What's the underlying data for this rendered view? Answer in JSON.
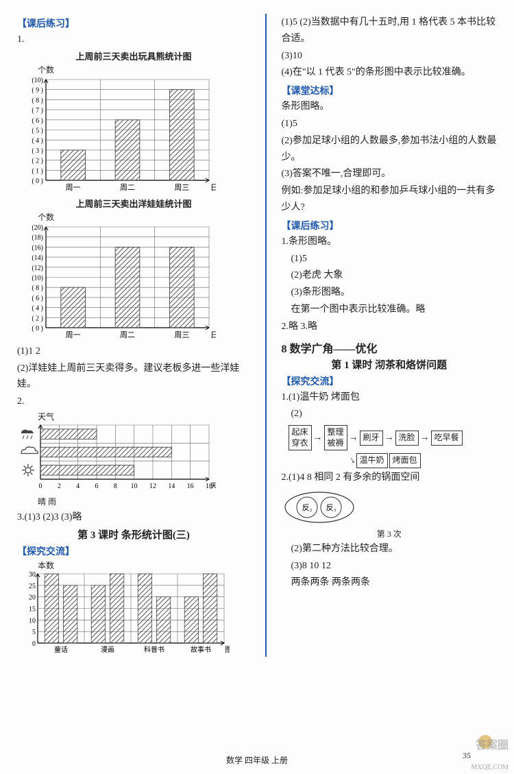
{
  "left": {
    "sect_practice": "【课后练习】",
    "q1": "1.",
    "chart1": {
      "title": "上周前三天卖出玩具熊统计图",
      "ylabel": "个数",
      "xlabel": "日期",
      "ymax": 10,
      "ystep": 1,
      "yticks": [
        "(10)",
        "( 9 )",
        "( 8 )",
        "( 7 )",
        "( 6 )",
        "( 5 )",
        "( 4 )",
        "( 3 )",
        "( 2 )",
        "( 1 )",
        "( 0 )"
      ],
      "categories": [
        "周一",
        "周二",
        "周三"
      ],
      "values": [
        3,
        6,
        9
      ],
      "bar_width_ratio": 0.45,
      "bar_color": "#666",
      "grid_color": "#666",
      "bg": "#fff"
    },
    "chart2": {
      "title": "上周前三天卖出洋娃娃统计图",
      "ylabel": "个数",
      "xlabel": "日期",
      "ymax": 20,
      "ystep": 2,
      "yticks": [
        "(20)",
        "(18)",
        "(16)",
        "(14)",
        "(12)",
        "(10)",
        "( 8 )",
        "( 6 )",
        "( 4 )",
        "( 2 )",
        "( 0 )"
      ],
      "categories": [
        "周一",
        "周二",
        "周三"
      ],
      "values": [
        8,
        16,
        16
      ],
      "bar_width_ratio": 0.45,
      "bar_color": "#666",
      "grid_color": "#666",
      "bg": "#fff"
    },
    "a1_1": "(1)1  2",
    "a1_2": "(2)洋娃娃上周前三天卖得多。建议老板多进一些洋娃娃。",
    "q2": "2.",
    "chart3": {
      "ylabel": "天气",
      "xlabel": "天数",
      "xmax": 18,
      "xstep": 2,
      "xticks": [
        "0",
        "2",
        "4",
        "6",
        "8",
        "10",
        "12",
        "14",
        "16",
        "18"
      ],
      "rows": [
        {
          "icon": "rain",
          "value": 6
        },
        {
          "icon": "cloud",
          "value": 14
        },
        {
          "icon": "sun",
          "value": 10
        }
      ],
      "bar_color": "#666",
      "grid_color": "#666",
      "legend": "晴  雨"
    },
    "q3": "3.(1)3  (2)3  (3)略",
    "lesson3": "第 3 课时  条形统计图(三)",
    "sect_explore": "【探究交流】",
    "chart4": {
      "ylabel": "本数",
      "xlabel": "图书",
      "ymax": 30,
      "ystep": 5,
      "yticks": [
        "30",
        "25",
        "20",
        "15",
        "10",
        "5",
        "0"
      ],
      "categories": [
        "童话",
        "漫画",
        "科普书",
        "故事书"
      ],
      "left_values": [
        30,
        25,
        30,
        20
      ],
      "right_values": [
        25,
        30,
        20,
        30
      ],
      "bar_color": "#666",
      "grid_color": "#666"
    }
  },
  "right": {
    "p1": "(1)5  (2)当数据中有几十五时,用 1 格代表 5 本书比较合适。",
    "p2": "(3)10",
    "p3": "(4)在\"以 1 代表 5\"的条形图中表示比较准确。",
    "sect_std": "【课堂达标】",
    "s1": "条形图略。",
    "s2": "(1)5",
    "s3": "(2)参加足球小组的人数最多,参加书法小组的人数最少。",
    "s4": "(3)答案不唯一,合理即可。",
    "s5": "例如:参加足球小组的和参加乒乓球小组的一共有多少人?",
    "sect_practice": "【课后练习】",
    "r1": "1.条形图略。",
    "r1_1": "(1)5",
    "r1_2": "(2)老虎  大象",
    "r1_3": "(3)条形图略。",
    "r1_4": "在第一个图中表示比较准确。略",
    "r2": "2.略  3.略",
    "unit8": "8  数学广角——优化",
    "lesson1": "第 1 课时  沏茶和烙饼问题",
    "sect_explore": "【探究交流】",
    "e1": "1.(1)温牛奶  烤面包",
    "e1_2": "(2)",
    "flow": {
      "b1a": "起床",
      "b1b": "穿衣",
      "b2a": "整理",
      "b2b": "被褥",
      "b3": "刷牙",
      "b4": "洗脸",
      "b5": "吃早餐",
      "b6": "温牛奶",
      "b7": "烤面包"
    },
    "e2": "2.(1)4  8  相同  2  有多余的锅面空间",
    "oval_l": "反₂",
    "oval_r": "反₃",
    "oval_cap": "第 3 次",
    "e2_2": "(2)第二种方法比较合理。",
    "e2_3": "(3)8  10  12",
    "e2_4": "两条两条  两条两条"
  },
  "footer": "数学  四年级  上册",
  "page": "35",
  "wm1": "MXQE.COM",
  "wm2": "答案圈"
}
